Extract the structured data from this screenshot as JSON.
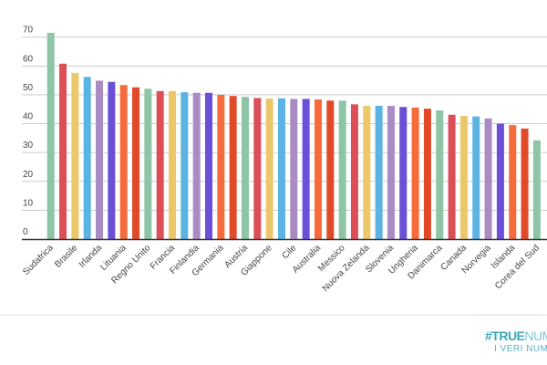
{
  "chart_data": {
    "type": "bar",
    "title": "",
    "xlabel": "",
    "ylabel": "",
    "ylim": [
      0,
      70
    ],
    "yticks": [
      0,
      10,
      20,
      30,
      40,
      50,
      60,
      70
    ],
    "grid": true,
    "legend": "none",
    "categories": [
      "Sudafrica",
      "",
      "Brasile",
      "",
      "Irlanda",
      "",
      "Lituania",
      "",
      "Regno Unito",
      "",
      "Francia",
      "",
      "Finlandia",
      "",
      "Germania",
      "",
      "Austria",
      "",
      "Giappone",
      "",
      "Cile",
      "",
      "Australia",
      "",
      "Messico",
      "",
      "Nuova Zelanda",
      "",
      "Slovenia",
      "",
      "Ungheria",
      "",
      "Danimarca",
      "",
      "Canada",
      "",
      "Norvegia",
      "",
      "Islanda",
      "",
      "Corea del Sud"
    ],
    "values": [
      71.5,
      60.8,
      57.6,
      56.2,
      54.9,
      54.5,
      53.4,
      52.6,
      52.1,
      51.3,
      51.3,
      50.9,
      50.7,
      50.7,
      50.0,
      49.6,
      49.3,
      48.9,
      48.7,
      48.8,
      48.6,
      48.6,
      48.4,
      48.0,
      48.0,
      46.7,
      46.2,
      46.2,
      46.2,
      45.8,
      45.6,
      45.2,
      44.6,
      43.1,
      42.7,
      42.5,
      41.8,
      40.0,
      39.5,
      38.3,
      34.2
    ],
    "colors": [
      "#8ec5a6",
      "#dc4f57",
      "#ecc86a",
      "#5bb3e3",
      "#aa8cc5",
      "#6a50d8",
      "#f76b3a",
      "#e04a28"
    ]
  },
  "logo": {
    "main_bold": "#TRUE",
    "main_thin": "NUMBE",
    "tagline": "I VERI NUM"
  }
}
